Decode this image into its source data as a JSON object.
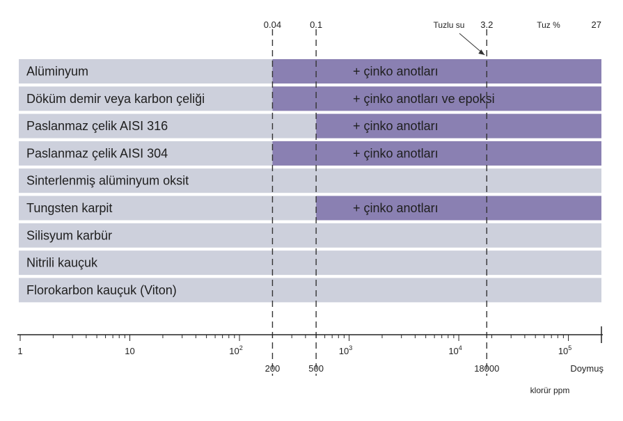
{
  "chart_data": {
    "type": "bar",
    "scale": "log10",
    "xlim": [
      1,
      200000
    ],
    "x_unit_label": "klorür ppm",
    "colors": {
      "row_background": "#cdd0dc",
      "range_fill": "#8a80b2",
      "dash_line": "#333333",
      "axis_line": "#222222"
    },
    "rows": [
      {
        "label": "Alüminyum",
        "range_start": 200,
        "range_end": 200000,
        "range_text": "+ çinko anotları"
      },
      {
        "label": "Döküm demir veya karbon çeliği",
        "range_start": 200,
        "range_end": 200000,
        "range_text": "+ çinko anotları ve epoksi"
      },
      {
        "label": "Paslanmaz çelik AISI 316",
        "range_start": 500,
        "range_end": 200000,
        "range_text": "+ çinko anotları"
      },
      {
        "label": "Paslanmaz çelik AISI 304",
        "range_start": 200,
        "range_end": 200000,
        "range_text": "+ çinko anotları"
      },
      {
        "label": "Sinterlenmiş alüminyum oksit",
        "range_start": null,
        "range_end": null,
        "range_text": ""
      },
      {
        "label": "Tungsten karpit",
        "range_start": 500,
        "range_end": 200000,
        "range_text": "+ çinko anotları"
      },
      {
        "label": "Silisyum karbür",
        "range_start": null,
        "range_end": null,
        "range_text": ""
      },
      {
        "label": "Nitrili kauçuk",
        "range_start": null,
        "range_end": null,
        "range_text": ""
      },
      {
        "label": "Florokarbon kauçuk (Viton)",
        "range_start": null,
        "range_end": null,
        "range_text": ""
      }
    ],
    "reference_lines": [
      200,
      500,
      18000
    ],
    "top_ticks": [
      {
        "value": 200,
        "label": "0.04"
      },
      {
        "value": 500,
        "label": "0.1"
      },
      {
        "value": 18000,
        "label": "3.2"
      },
      {
        "value": 200000,
        "label": "27"
      }
    ],
    "top_text": {
      "tuzlu_su": "Tuzlu su",
      "tuz_percent": "Tuz %"
    },
    "bottom_ticks": [
      {
        "value": 1,
        "base": "1",
        "sup": ""
      },
      {
        "value": 10,
        "base": "10",
        "sup": ""
      },
      {
        "value": 100,
        "base": "10",
        "sup": "2"
      },
      {
        "value": 1000,
        "base": "10",
        "sup": "3"
      },
      {
        "value": 10000,
        "base": "10",
        "sup": "4"
      },
      {
        "value": 100000,
        "base": "10",
        "sup": "5"
      }
    ],
    "secondary_ticks": [
      {
        "value": 200,
        "label": "200"
      },
      {
        "value": 500,
        "label": "500"
      },
      {
        "value": 18000,
        "label": "18000"
      },
      {
        "value": 200000,
        "label": "Doymuş"
      }
    ]
  }
}
